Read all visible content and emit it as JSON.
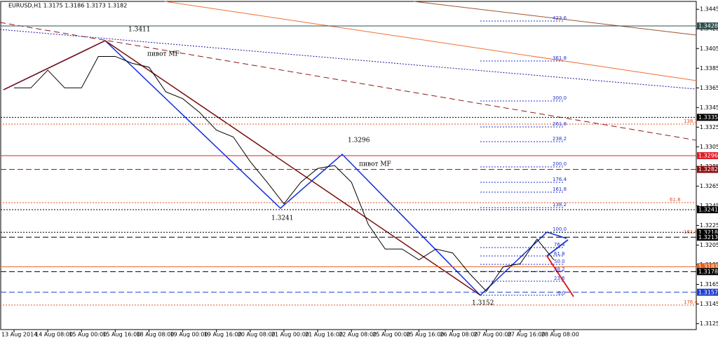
{
  "chart_data": {
    "type": "line",
    "title": "EURUSD,H1  1.3175 1.3186 1.3173 1.3182",
    "categories": [
      "13 Aug 2014",
      null,
      "14 Aug 08:00",
      null,
      "15 Aug 00:00",
      null,
      "15 Aug 16:00",
      null,
      "18 Aug 08:00",
      null,
      "19 Aug 00:00",
      null,
      "19 Aug 16:00",
      null,
      "20 Aug 08:00",
      null,
      "21 Aug 00:00",
      null,
      "21 Aug 16:00",
      null,
      "22 Aug 08:00",
      null,
      "25 Aug 00:00",
      null,
      "25 Aug 16:00",
      null,
      "26 Aug 08:00",
      null,
      "27 Aug 00:00",
      null,
      "27 Aug 16:00",
      null,
      "28 Aug 08:00"
    ],
    "values": [
      1.3365,
      1.3365,
      1.3383,
      1.3365,
      1.3365,
      1.3397,
      1.3397,
      1.339,
      1.3386,
      1.3361,
      1.3354,
      1.334,
      1.3322,
      1.3315,
      1.329,
      1.3269,
      1.3247,
      1.3269,
      1.3283,
      1.3286,
      1.3269,
      1.3226,
      1.3201,
      1.3201,
      1.319,
      1.3201,
      1.3197,
      1.3176,
      1.3158,
      1.3183,
      1.3186,
      1.3211,
      1.319
    ],
    "color": "#000000",
    "ylim": [
      1.3119,
      1.3453
    ],
    "yticks": [
      1.3445,
      1.3425,
      1.3405,
      1.3385,
      1.3365,
      1.3345,
      1.3325,
      1.3305,
      1.3285,
      1.3265,
      1.3245,
      1.3225,
      1.3205,
      1.3185,
      1.3165,
      1.3145,
      1.3125
    ],
    "levels": [
      {
        "value": 1.3428,
        "color": "#2f4f4f",
        "dash": "none"
      },
      {
        "value": 1.3335,
        "color": "#000000",
        "dash": "2,2"
      },
      {
        "value": 1.3296,
        "color": "#e0202a",
        "dash": "none"
      },
      {
        "value": 1.3282,
        "color": "#8b1010",
        "dash": "8,4"
      },
      {
        "value": 1.3241,
        "color": "#000000",
        "dash": "2,2"
      },
      {
        "value": 1.3218,
        "color": "#000000",
        "dash": "2,2"
      },
      {
        "value": 1.3213,
        "color": "#000000",
        "dash": "8,4"
      },
      {
        "value": 1.3183,
        "color": "#e8601c",
        "dash": "none"
      },
      {
        "value": 1.3178,
        "color": "#000000",
        "dash": "8,4"
      },
      {
        "value": 1.3157,
        "color": "#1f3fd0",
        "dash": "8,4"
      }
    ],
    "annotations": [
      "1.3411",
      "пивот MF",
      "1.3296",
      "пивот MF",
      "1.3241",
      "1.3152"
    ],
    "fib_labels": [
      "423.6",
      "361.8",
      "300.0",
      "261.8",
      "238.2",
      "200.0",
      "176.4",
      "161.8",
      "138.2",
      "100.0",
      "76.4",
      "61.8",
      "50.0",
      "38.2",
      "23.6",
      "0.0"
    ],
    "fib_red_labels": [
      "138.2",
      "61.8",
      "161.8",
      "176.4"
    ]
  }
}
